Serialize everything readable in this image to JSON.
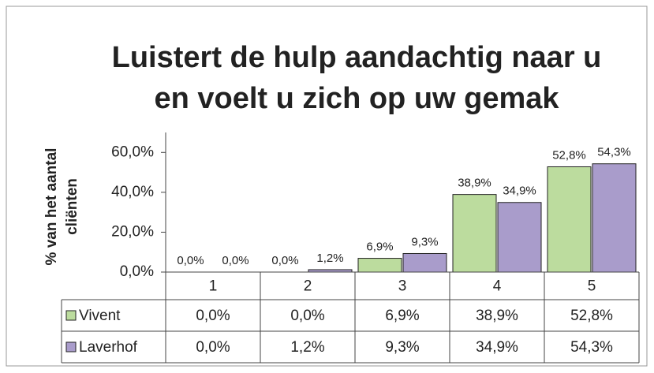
{
  "chart_data": {
    "type": "bar",
    "title": [
      "Luistert de hulp aandachtig naar u",
      "en voelt u zich op uw gemak"
    ],
    "y_label": [
      "% van het aantal",
      "cliënten"
    ],
    "categories": [
      "1",
      "2",
      "3",
      "4",
      "5"
    ],
    "series": [
      {
        "name": "Vivent",
        "color": "#bcdc9e",
        "values": [
          0,
          0,
          6.9,
          38.9,
          52.8
        ],
        "value_labels": [
          "0,0%",
          "0,0%",
          "6,9%",
          "38,9%",
          "52,8%"
        ]
      },
      {
        "name": "Laverhof",
        "color": "#a99ccb",
        "values": [
          0,
          1.2,
          9.3,
          34.9,
          54.3
        ],
        "value_labels": [
          "0,0%",
          "1,2%",
          "9,3%",
          "34,9%",
          "54,3%"
        ]
      }
    ],
    "ylim": [
      0,
      70
    ],
    "yticks": [
      {
        "value": 0,
        "label": "0,0%"
      },
      {
        "value": 20,
        "label": "20,0%"
      },
      {
        "value": 40,
        "label": "40,0%"
      },
      {
        "value": 60,
        "label": "60,0%"
      }
    ],
    "data_table": true
  }
}
